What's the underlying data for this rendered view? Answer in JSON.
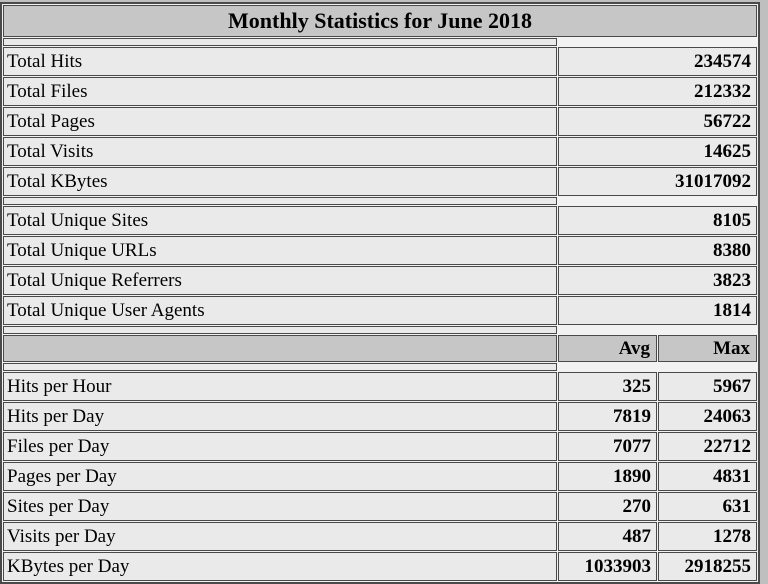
{
  "title": "Monthly Statistics for June 2018",
  "totals": [
    {
      "label": "Total Hits",
      "value": "234574"
    },
    {
      "label": "Total Files",
      "value": "212332"
    },
    {
      "label": "Total Pages",
      "value": "56722"
    },
    {
      "label": "Total Visits",
      "value": "14625"
    },
    {
      "label": "Total KBytes",
      "value": "31017092"
    }
  ],
  "uniques": [
    {
      "label": "Total Unique Sites",
      "value": "8105"
    },
    {
      "label": "Total Unique URLs",
      "value": "8380"
    },
    {
      "label": "Total Unique Referrers",
      "value": "3823"
    },
    {
      "label": "Total Unique User Agents",
      "value": "1814"
    }
  ],
  "columns": {
    "avg": "Avg",
    "max": "Max"
  },
  "rates": [
    {
      "label": "Hits per Hour",
      "avg": "325",
      "max": "5967"
    },
    {
      "label": "Hits per Day",
      "avg": "7819",
      "max": "24063"
    },
    {
      "label": "Files per Day",
      "avg": "7077",
      "max": "22712"
    },
    {
      "label": "Pages per Day",
      "avg": "1890",
      "max": "4831"
    },
    {
      "label": "Sites per Day",
      "avg": "270",
      "max": "631"
    },
    {
      "label": "Visits per Day",
      "avg": "487",
      "max": "1278"
    },
    {
      "label": "KBytes per Day",
      "avg": "1033903",
      "max": "2918255"
    }
  ],
  "colors": {
    "page_background": "#bfbfbf",
    "header_background": "#c6c6c6",
    "cell_background": "#eaeaea",
    "border": "#4a4a4a",
    "text": "#000000"
  }
}
